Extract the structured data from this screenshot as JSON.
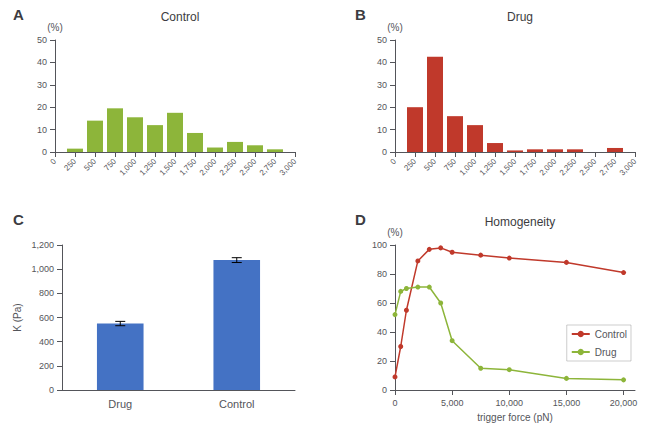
{
  "chart_data": [
    {
      "type": "bar",
      "title": "Control",
      "annotations": [
        "A"
      ],
      "ylabel": "(%)",
      "x": [
        250,
        500,
        750,
        1000,
        1250,
        1500,
        1750,
        2000,
        2250,
        2500,
        2750
      ],
      "values": [
        1.5,
        14.0,
        19.5,
        15.5,
        12.0,
        17.5,
        8.5,
        2.0,
        4.5,
        3.0,
        1.2
      ],
      "color": "#8db53a",
      "xlim": [
        0,
        3000
      ],
      "ylim": [
        0,
        50
      ],
      "xticks": [
        0,
        250,
        500,
        750,
        {
          "value": 1000,
          "label": "1,000"
        },
        {
          "value": 1250,
          "label": "1,250"
        },
        {
          "value": 1500,
          "label": "1,500"
        },
        {
          "value": 1750,
          "label": "1,750"
        },
        {
          "value": 2000,
          "label": "2,000"
        },
        {
          "value": 2250,
          "label": "2,250"
        },
        {
          "value": 2500,
          "label": "2,500"
        },
        {
          "value": 2750,
          "label": "2,750"
        },
        {
          "value": 3000,
          "label": "3,000"
        }
      ],
      "yticks": [
        0,
        10,
        20,
        30,
        40,
        50
      ],
      "grid": false
    },
    {
      "type": "bar",
      "title": "Drug",
      "annotations": [
        "B"
      ],
      "ylabel": "(%)",
      "x": [
        250,
        500,
        750,
        1000,
        1250,
        1500,
        1750,
        2000,
        2250,
        2750
      ],
      "values": [
        20.0,
        42.5,
        16.0,
        12.0,
        4.0,
        0.7,
        1.2,
        1.2,
        1.2,
        1.8
      ],
      "color": "#c0392b",
      "xlim": [
        0,
        3000
      ],
      "ylim": [
        0,
        50
      ],
      "xticks": [
        0,
        250,
        500,
        750,
        {
          "value": 1000,
          "label": "1,000"
        },
        {
          "value": 1250,
          "label": "1,250"
        },
        {
          "value": 1500,
          "label": "1,500"
        },
        {
          "value": 1750,
          "label": "1,750"
        },
        {
          "value": 2000,
          "label": "2,000"
        },
        {
          "value": 2250,
          "label": "2,250"
        },
        {
          "value": 2500,
          "label": "2,500"
        },
        {
          "value": 2750,
          "label": "2,750"
        },
        {
          "value": 3000,
          "label": "3,000"
        }
      ],
      "yticks": [
        0,
        10,
        20,
        30,
        40,
        50
      ],
      "grid": false
    },
    {
      "type": "bar",
      "annotations": [
        "C"
      ],
      "ylabel": "K (Pa)",
      "categories": [
        "Drug",
        "Control"
      ],
      "values": [
        550,
        1075
      ],
      "errors": [
        18,
        20
      ],
      "color": "#4472c4",
      "ylim": [
        0,
        1200
      ],
      "yticks": [
        0,
        200,
        400,
        600,
        800,
        {
          "value": 1000,
          "label": "1,000"
        },
        {
          "value": 1200,
          "label": "1,200"
        }
      ],
      "grid": false
    },
    {
      "type": "line",
      "title": "Homogeneity",
      "annotations": [
        "D"
      ],
      "xlabel": "trigger force (pN)",
      "ylabel": "(%)",
      "x": [
        0,
        500,
        1000,
        2000,
        3000,
        4000,
        5000,
        7500,
        10000,
        15000,
        20000
      ],
      "series": [
        {
          "name": "Control",
          "color": "#c0392b",
          "values": [
            9,
            30,
            55,
            89,
            97,
            98,
            95,
            93,
            91,
            88,
            81
          ]
        },
        {
          "name": "Drug",
          "color": "#8db53a",
          "values": [
            52,
            68,
            70,
            71,
            71,
            60,
            34,
            15,
            14,
            8,
            7
          ]
        }
      ],
      "xlim": [
        0,
        21000
      ],
      "ylim": [
        0,
        100
      ],
      "xticks": [
        0,
        {
          "value": 5000,
          "label": "5,000"
        },
        {
          "value": 10000,
          "label": "10,000"
        },
        {
          "value": 15000,
          "label": "15,000"
        },
        {
          "value": 20000,
          "label": "20,000"
        }
      ],
      "yticks": [
        0,
        20,
        40,
        60,
        80,
        100
      ],
      "marker": "circle",
      "legend": "lower right",
      "grid": false
    }
  ]
}
